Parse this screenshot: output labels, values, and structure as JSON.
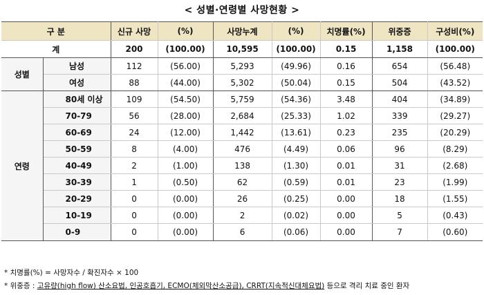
{
  "title": "< 성별·연령별 사망현황 >",
  "header": {
    "category": "구 분",
    "new_deaths": "신규 사망",
    "pct1": "(%)",
    "cum_deaths": "사망누계",
    "pct2": "(%)",
    "cfr": "치명률(%)",
    "severe": "위중증",
    "ratio": "구성비(%)"
  },
  "total": {
    "label": "계",
    "new": "200",
    "new_pct": "(100.00)",
    "cum": "10,595",
    "cum_pct": "(100.00)",
    "cfr": "0.15",
    "severe": "1,158",
    "ratio": "(100.00)"
  },
  "sex_group": "성별",
  "sex_rows": [
    {
      "label": "남성",
      "new": "112",
      "new_pct": "(56.00)",
      "cum": "5,293",
      "cum_pct": "(49.96)",
      "cfr": "0.16",
      "severe": "654",
      "ratio": "(56.48)"
    },
    {
      "label": "여성",
      "new": "88",
      "new_pct": "(44.00)",
      "cum": "5,302",
      "cum_pct": "(50.04)",
      "cfr": "0.15",
      "severe": "504",
      "ratio": "(43.52)"
    }
  ],
  "age_group": "연령",
  "age_rows": [
    {
      "label": "80세 이상",
      "new": "109",
      "new_pct": "(54.50)",
      "cum": "5,759",
      "cum_pct": "(54.36)",
      "cfr": "3.48",
      "severe": "404",
      "ratio": "(34.89)"
    },
    {
      "label": "70-79",
      "new": "56",
      "new_pct": "(28.00)",
      "cum": "2,684",
      "cum_pct": "(25.33)",
      "cfr": "1.02",
      "severe": "339",
      "ratio": "(29.27)"
    },
    {
      "label": "60-69",
      "new": "24",
      "new_pct": "(12.00)",
      "cum": "1,442",
      "cum_pct": "(13.61)",
      "cfr": "0.23",
      "severe": "235",
      "ratio": "(20.29)"
    },
    {
      "label": "50-59",
      "new": "8",
      "new_pct": "(4.00)",
      "cum": "476",
      "cum_pct": "(4.49)",
      "cfr": "0.06",
      "severe": "96",
      "ratio": "(8.29)"
    },
    {
      "label": "40-49",
      "new": "2",
      "new_pct": "(1.00)",
      "cum": "138",
      "cum_pct": "(1.30)",
      "cfr": "0.01",
      "severe": "31",
      "ratio": "(2.68)"
    },
    {
      "label": "30-39",
      "new": "1",
      "new_pct": "(0.50)",
      "cum": "62",
      "cum_pct": "(0.59)",
      "cfr": "0.01",
      "severe": "23",
      "ratio": "(1.99)"
    },
    {
      "label": "20-29",
      "new": "0",
      "new_pct": "(0.00)",
      "cum": "26",
      "cum_pct": "(0.25)",
      "cfr": "0.00",
      "severe": "18",
      "ratio": "(1.55)"
    },
    {
      "label": "10-19",
      "new": "0",
      "new_pct": "(0.00)",
      "cum": "2",
      "cum_pct": "(0.02)",
      "cfr": "0.00",
      "severe": "5",
      "ratio": "(0.43)"
    },
    {
      "label": "0-9",
      "new": "0",
      "new_pct": "(0.00)",
      "cum": "6",
      "cum_pct": "(0.06)",
      "cfr": "0.00",
      "severe": "7",
      "ratio": "(0.60)"
    }
  ],
  "notes": {
    "note1": "* 치명률(%) = 사망자수 / 확진자수 × 100",
    "note2_prefix": "* 위중증 : ",
    "note2_body": "고유량(high flow) 산소요법, 인공호흡기, ECMO(체외막산소공급), CRRT(지속적신대체요법)",
    "note2_suffix": " 등으로 격리 치료 중인 환자"
  }
}
